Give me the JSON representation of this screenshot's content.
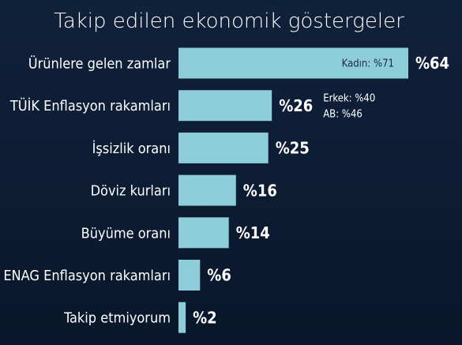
{
  "chart_data": {
    "type": "bar",
    "orientation": "horizontal",
    "title": "Takip edilen ekonomik göstergeler",
    "value_prefix": "%",
    "categories": [
      "Ürünlere gelen zamlar",
      "TÜİK Enflasyon rakamları",
      "İşsizlik oranı",
      "Döviz kurları",
      "Büyüme oranı",
      "ENAG Enflasyon rakamları",
      "Takip etmiyorum"
    ],
    "values": [
      64,
      26,
      25,
      16,
      14,
      6,
      2
    ],
    "xlim": [
      0,
      64
    ],
    "annotations": [
      {
        "category": "Ürünlere gelen zamlar",
        "text": "Kadın: %71",
        "placement": "inside-bar-right"
      },
      {
        "category": "TÜİK Enflasyon rakamları",
        "text": "Erkek: %40",
        "placement": "right-of-value"
      },
      {
        "category": "TÜİK Enflasyon rakamları",
        "text": "AB: %46",
        "placement": "right-of-value"
      }
    ],
    "grid": false,
    "legend": "none"
  },
  "colors": {
    "background": "#0e1f37",
    "bar": "#8dccd9",
    "text": "#ffffff",
    "annotation_on_bar": "#1a2b44"
  }
}
